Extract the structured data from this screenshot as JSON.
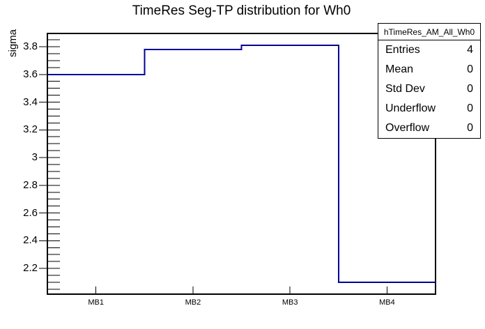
{
  "window": {
    "background": "#ffffff"
  },
  "title": "TimeRes Seg-TP distribution for Wh0",
  "chart_data": {
    "type": "step-histogram",
    "title": "TimeRes Seg-TP distribution for Wh0",
    "xlabel": "",
    "ylabel": "sigma",
    "categories": [
      "MB1",
      "MB2",
      "MB3",
      "MB4"
    ],
    "values": [
      3.6,
      3.78,
      3.81,
      2.1
    ],
    "ylim": [
      2.0145,
      3.8955
    ],
    "y_major_ticks": [
      2.2,
      2.4,
      2.6,
      2.8,
      3.0,
      3.2,
      3.4,
      3.6,
      3.8
    ],
    "y_major_labels": [
      "2.2",
      "2.4",
      "2.6",
      "2.8",
      "3",
      "3.2",
      "3.4",
      "3.6",
      "3.8"
    ],
    "y_minor_step": 0.05,
    "grid": false,
    "line_color": "#000099",
    "frame_color": "#000000",
    "legend_position": "top-right"
  },
  "stats_box": {
    "header": "hTimeRes_AM_All_Wh0",
    "rows": [
      {
        "label": "Entries",
        "value": "4"
      },
      {
        "label": "Mean",
        "value": "0"
      },
      {
        "label": "Std Dev",
        "value": "0"
      },
      {
        "label": "Underflow",
        "value": "0"
      },
      {
        "label": "Overflow",
        "value": "0"
      }
    ]
  }
}
